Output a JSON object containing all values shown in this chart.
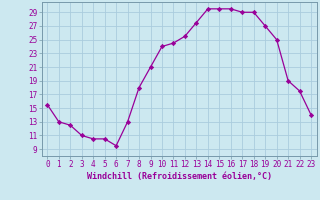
{
  "hours": [
    0,
    1,
    2,
    3,
    4,
    5,
    6,
    7,
    8,
    9,
    10,
    11,
    12,
    13,
    14,
    15,
    16,
    17,
    18,
    19,
    20,
    21,
    22,
    23
  ],
  "values": [
    15.5,
    13.0,
    12.5,
    11.0,
    10.5,
    10.5,
    9.5,
    13.0,
    18.0,
    21.0,
    24.0,
    24.5,
    25.5,
    27.5,
    29.5,
    29.5,
    29.5,
    29.0,
    29.0,
    27.0,
    25.0,
    19.0,
    17.5,
    14.0
  ],
  "line_color": "#990099",
  "marker": "D",
  "marker_size": 2.2,
  "bg_color": "#cce8f0",
  "grid_color": "#aaccdd",
  "xlabel": "Windchill (Refroidissement éolien,°C)",
  "xlabel_color": "#990099",
  "ylabel_ticks": [
    9,
    11,
    13,
    15,
    17,
    19,
    21,
    23,
    25,
    27,
    29
  ],
  "ylim": [
    8.0,
    30.5
  ],
  "xlim": [
    -0.5,
    23.5
  ],
  "spine_color": "#7799aa",
  "tick_label_fontsize": 5.5,
  "xlabel_fontsize": 6.0
}
